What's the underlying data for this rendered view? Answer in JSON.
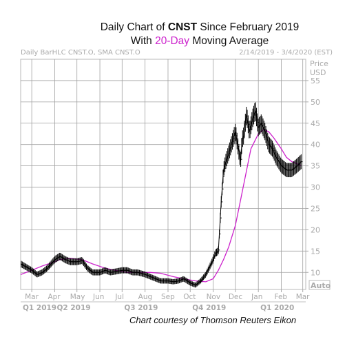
{
  "title_line1": {
    "prefix": "Daily Chart of ",
    "ticker": "CNST",
    "suffix": " Since February 2019"
  },
  "title_line2": {
    "prefix": "With ",
    "highlight": "20-Day",
    "suffix": " Moving Average"
  },
  "header": {
    "left": "Daily BarHLC CNST.O, SMA CNST.O",
    "right": "2/14/2019 - 3/4/2020 (EST)"
  },
  "axis": {
    "price_label": "Price",
    "currency_label": "USD",
    "auto_label": "Auto",
    "y_ticks": [
      10,
      15,
      20,
      25,
      30,
      35,
      40,
      45,
      50,
      55
    ],
    "month_labels": [
      "Mar",
      "Apr",
      "May",
      "Jun",
      "Jul",
      "Aug",
      "Sep",
      "Oct",
      "Nov",
      "Dec",
      "Jan",
      "Feb",
      "Mar"
    ],
    "quarter_labels": [
      "Q1 2019",
      "Q2 2019",
      "Q3 2019",
      "Q4 2019",
      "Q1 2020"
    ]
  },
  "credit": "Chart courtesy of Thomson Reuters Eikon",
  "colors": {
    "price_bars": "#000000",
    "sma": "#cc22cc",
    "grid": "#a0a0a0",
    "axis_text": "#a9a9a9"
  },
  "chart_data": {
    "type": "line",
    "ylim": [
      6,
      60
    ],
    "series": [
      {
        "style": "hlc-bars",
        "x": [
          "2019-02-14",
          "2019-03-01",
          "2019-03-08",
          "2019-03-15",
          "2019-03-22",
          "2019-04-01",
          "2019-04-08",
          "2019-04-15",
          "2019-04-22",
          "2019-05-01",
          "2019-05-08",
          "2019-05-15",
          "2019-05-22",
          "2019-06-01",
          "2019-06-08",
          "2019-06-15",
          "2019-06-22",
          "2019-07-01",
          "2019-07-08",
          "2019-07-15",
          "2019-07-22",
          "2019-08-01",
          "2019-08-08",
          "2019-08-15",
          "2019-08-22",
          "2019-09-01",
          "2019-09-08",
          "2019-09-15",
          "2019-09-22",
          "2019-10-01",
          "2019-10-08",
          "2019-10-15",
          "2019-10-22",
          "2019-11-01",
          "2019-11-04",
          "2019-11-08",
          "2019-11-12",
          "2019-11-15",
          "2019-11-18",
          "2019-11-22",
          "2019-12-01",
          "2019-12-04",
          "2019-12-08",
          "2019-12-10",
          "2019-12-12",
          "2019-12-16",
          "2019-12-20",
          "2019-12-24",
          "2019-12-28",
          "2020-01-01",
          "2020-01-05",
          "2020-01-10",
          "2020-01-15",
          "2020-01-20",
          "2020-01-25",
          "2020-02-01",
          "2020-02-08",
          "2020-02-15",
          "2020-02-22",
          "2020-02-28"
        ],
        "close": [
          12,
          10.5,
          9.5,
          10,
          11,
          13,
          13.8,
          13,
          12.5,
          12.5,
          12.8,
          11,
          10,
          10,
          10.5,
          10,
          10.2,
          10.5,
          10.5,
          10,
          10,
          9.5,
          9,
          8.5,
          8,
          8,
          7.8,
          8,
          8.5,
          7.5,
          7,
          8,
          9.5,
          13,
          14.5,
          15,
          27,
          34,
          36,
          38,
          43,
          40,
          36,
          41,
          42,
          47,
          43,
          46,
          48,
          44,
          45,
          43,
          40,
          39,
          37,
          35,
          34,
          34,
          35,
          36
        ]
      },
      {
        "name": "",
        "style": "sma",
        "x": [
          "2019-02-14",
          "2019-03-01",
          "2019-03-15",
          "2019-04-01",
          "2019-04-08",
          "2019-04-22",
          "2019-05-08",
          "2019-05-22",
          "2019-06-08",
          "2019-06-22",
          "2019-07-08",
          "2019-07-22",
          "2019-08-08",
          "2019-08-22",
          "2019-09-08",
          "2019-09-22",
          "2019-10-08",
          "2019-10-22",
          "2019-11-01",
          "2019-11-08",
          "2019-11-15",
          "2019-11-22",
          "2019-12-01",
          "2019-12-08",
          "2019-12-15",
          "2019-12-22",
          "2020-01-01",
          "2020-01-08",
          "2020-01-15",
          "2020-01-22",
          "2020-02-01",
          "2020-02-08",
          "2020-02-15",
          "2020-02-22",
          "2020-02-28"
        ],
        "values": [
          9.5,
          10.5,
          11.5,
          12.5,
          13,
          13.3,
          13,
          12,
          11,
          10.5,
          10,
          10,
          10,
          9.8,
          9,
          8.5,
          8,
          7.8,
          8.5,
          10.5,
          13,
          16,
          21,
          27,
          33,
          39,
          42.5,
          43.5,
          43,
          41.5,
          39,
          37,
          36,
          35.5,
          35
        ]
      }
    ]
  }
}
